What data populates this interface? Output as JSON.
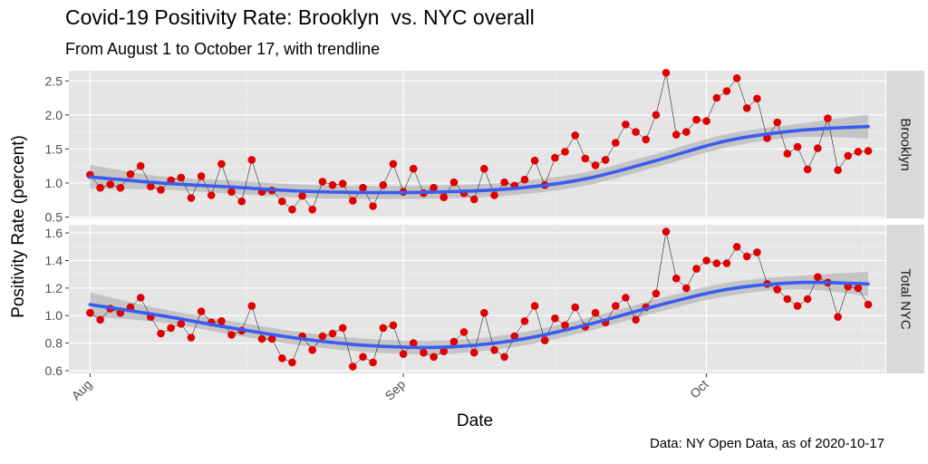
{
  "chart_data": {
    "type": "line",
    "title": "Covid-19 Positivity Rate: Brooklyn  vs. NYC overall",
    "subtitle": "From August 1 to October 17, with trendline",
    "xlabel": "Date",
    "ylabel": "Positivity Rate (percent)",
    "caption": "Data: NY Open Data, as of 2020-10-17",
    "x_ticks": [
      {
        "label": "Aug",
        "date": "2020-08-01"
      },
      {
        "label": "Sep",
        "date": "2020-09-01"
      },
      {
        "label": "Oct",
        "date": "2020-10-01"
      }
    ],
    "xlim": [
      "2020-08-01",
      "2020-10-17"
    ],
    "grid": true,
    "point_color": "#e00000",
    "line_color": "#000000",
    "trend_color": "#3a5cf0",
    "band_color": "#b8b8b8",
    "panels": [
      {
        "strip_label": "Brooklyn",
        "ylim": [
          0.48,
          2.65
        ],
        "y_ticks": [
          "0.5",
          "1.0",
          "1.5",
          "2.0",
          "2.5"
        ],
        "x": [
          "2020-08-01",
          "2020-08-02",
          "2020-08-03",
          "2020-08-04",
          "2020-08-05",
          "2020-08-06",
          "2020-08-07",
          "2020-08-08",
          "2020-08-09",
          "2020-08-10",
          "2020-08-11",
          "2020-08-12",
          "2020-08-13",
          "2020-08-14",
          "2020-08-15",
          "2020-08-16",
          "2020-08-17",
          "2020-08-18",
          "2020-08-19",
          "2020-08-20",
          "2020-08-21",
          "2020-08-22",
          "2020-08-23",
          "2020-08-24",
          "2020-08-25",
          "2020-08-26",
          "2020-08-27",
          "2020-08-28",
          "2020-08-29",
          "2020-08-30",
          "2020-08-31",
          "2020-09-01",
          "2020-09-02",
          "2020-09-03",
          "2020-09-04",
          "2020-09-05",
          "2020-09-06",
          "2020-09-07",
          "2020-09-08",
          "2020-09-09",
          "2020-09-10",
          "2020-09-11",
          "2020-09-12",
          "2020-09-13",
          "2020-09-14",
          "2020-09-15",
          "2020-09-16",
          "2020-09-17",
          "2020-09-18",
          "2020-09-19",
          "2020-09-20",
          "2020-09-21",
          "2020-09-22",
          "2020-09-23",
          "2020-09-24",
          "2020-09-25",
          "2020-09-26",
          "2020-09-27",
          "2020-09-28",
          "2020-09-29",
          "2020-09-30",
          "2020-10-01",
          "2020-10-02",
          "2020-10-03",
          "2020-10-04",
          "2020-10-05",
          "2020-10-06",
          "2020-10-07",
          "2020-10-08",
          "2020-10-09",
          "2020-10-10",
          "2020-10-11",
          "2020-10-12",
          "2020-10-13",
          "2020-10-14",
          "2020-10-15",
          "2020-10-16",
          "2020-10-17"
        ],
        "y": [
          1.12,
          0.93,
          0.98,
          0.93,
          1.13,
          1.25,
          0.95,
          0.9,
          1.04,
          1.08,
          0.78,
          1.1,
          0.82,
          1.28,
          0.87,
          0.73,
          1.34,
          0.87,
          0.89,
          0.73,
          0.61,
          0.81,
          0.61,
          1.02,
          0.97,
          0.99,
          0.74,
          0.93,
          0.66,
          0.97,
          1.28,
          0.87,
          1.21,
          0.85,
          0.93,
          0.79,
          1.01,
          0.85,
          0.76,
          1.21,
          0.82,
          1.01,
          0.96,
          1.05,
          1.33,
          0.97,
          1.37,
          1.46,
          1.7,
          1.36,
          1.26,
          1.34,
          1.59,
          1.86,
          1.75,
          1.64,
          2.0,
          2.62,
          1.71,
          1.75,
          1.93,
          1.91,
          2.25,
          2.35,
          2.54,
          2.1,
          2.24,
          1.66,
          1.89,
          1.43,
          1.53,
          1.2,
          1.51,
          1.95,
          1.19,
          1.4,
          1.46,
          1.47
        ],
        "trend": [
          [
            "2020-08-01",
            1.09
          ],
          [
            "2020-08-08",
            1.0
          ],
          [
            "2020-08-15",
            0.94
          ],
          [
            "2020-08-22",
            0.88
          ],
          [
            "2020-08-29",
            0.86
          ],
          [
            "2020-09-05",
            0.87
          ],
          [
            "2020-09-12",
            0.92
          ],
          [
            "2020-09-19",
            1.06
          ],
          [
            "2020-09-26",
            1.33
          ],
          [
            "2020-10-03",
            1.62
          ],
          [
            "2020-10-10",
            1.77
          ],
          [
            "2020-10-17",
            1.83
          ]
        ]
      },
      {
        "strip_label": "Total NYC",
        "ylim": [
          0.58,
          1.66
        ],
        "y_ticks": [
          "0.6",
          "0.8",
          "1.0",
          "1.2",
          "1.4",
          "1.6"
        ],
        "x": [
          "2020-08-01",
          "2020-08-02",
          "2020-08-03",
          "2020-08-04",
          "2020-08-05",
          "2020-08-06",
          "2020-08-07",
          "2020-08-08",
          "2020-08-09",
          "2020-08-10",
          "2020-08-11",
          "2020-08-12",
          "2020-08-13",
          "2020-08-14",
          "2020-08-15",
          "2020-08-16",
          "2020-08-17",
          "2020-08-18",
          "2020-08-19",
          "2020-08-20",
          "2020-08-21",
          "2020-08-22",
          "2020-08-23",
          "2020-08-24",
          "2020-08-25",
          "2020-08-26",
          "2020-08-27",
          "2020-08-28",
          "2020-08-29",
          "2020-08-30",
          "2020-08-31",
          "2020-09-01",
          "2020-09-02",
          "2020-09-03",
          "2020-09-04",
          "2020-09-05",
          "2020-09-06",
          "2020-09-07",
          "2020-09-08",
          "2020-09-09",
          "2020-09-10",
          "2020-09-11",
          "2020-09-12",
          "2020-09-13",
          "2020-09-14",
          "2020-09-15",
          "2020-09-16",
          "2020-09-17",
          "2020-09-18",
          "2020-09-19",
          "2020-09-20",
          "2020-09-21",
          "2020-09-22",
          "2020-09-23",
          "2020-09-24",
          "2020-09-25",
          "2020-09-26",
          "2020-09-27",
          "2020-09-28",
          "2020-09-29",
          "2020-09-30",
          "2020-10-01",
          "2020-10-02",
          "2020-10-03",
          "2020-10-04",
          "2020-10-05",
          "2020-10-06",
          "2020-10-07",
          "2020-10-08",
          "2020-10-09",
          "2020-10-10",
          "2020-10-11",
          "2020-10-12",
          "2020-10-13",
          "2020-10-14",
          "2020-10-15",
          "2020-10-16",
          "2020-10-17"
        ],
        "y": [
          1.02,
          0.97,
          1.05,
          1.02,
          1.06,
          1.13,
          0.99,
          0.87,
          0.91,
          0.94,
          0.84,
          1.03,
          0.95,
          0.96,
          0.86,
          0.89,
          1.07,
          0.83,
          0.83,
          0.69,
          0.66,
          0.85,
          0.75,
          0.85,
          0.87,
          0.91,
          0.63,
          0.7,
          0.66,
          0.91,
          0.93,
          0.72,
          0.8,
          0.73,
          0.7,
          0.74,
          0.81,
          0.88,
          0.73,
          1.02,
          0.75,
          0.7,
          0.85,
          0.96,
          1.07,
          0.82,
          0.98,
          0.93,
          1.06,
          0.92,
          1.02,
          0.95,
          1.07,
          1.13,
          0.97,
          1.06,
          1.16,
          1.61,
          1.27,
          1.2,
          1.34,
          1.4,
          1.38,
          1.38,
          1.5,
          1.43,
          1.46,
          1.23,
          1.19,
          1.12,
          1.07,
          1.12,
          1.28,
          1.24,
          0.99,
          1.21,
          1.2,
          1.08
        ],
        "trend": [
          [
            "2020-08-01",
            1.08
          ],
          [
            "2020-08-08",
            1.0
          ],
          [
            "2020-08-15",
            0.91
          ],
          [
            "2020-08-22",
            0.83
          ],
          [
            "2020-08-29",
            0.78
          ],
          [
            "2020-09-05",
            0.77
          ],
          [
            "2020-09-12",
            0.82
          ],
          [
            "2020-09-19",
            0.93
          ],
          [
            "2020-09-26",
            1.07
          ],
          [
            "2020-10-03",
            1.19
          ],
          [
            "2020-10-10",
            1.24
          ],
          [
            "2020-10-17",
            1.23
          ]
        ]
      }
    ]
  }
}
